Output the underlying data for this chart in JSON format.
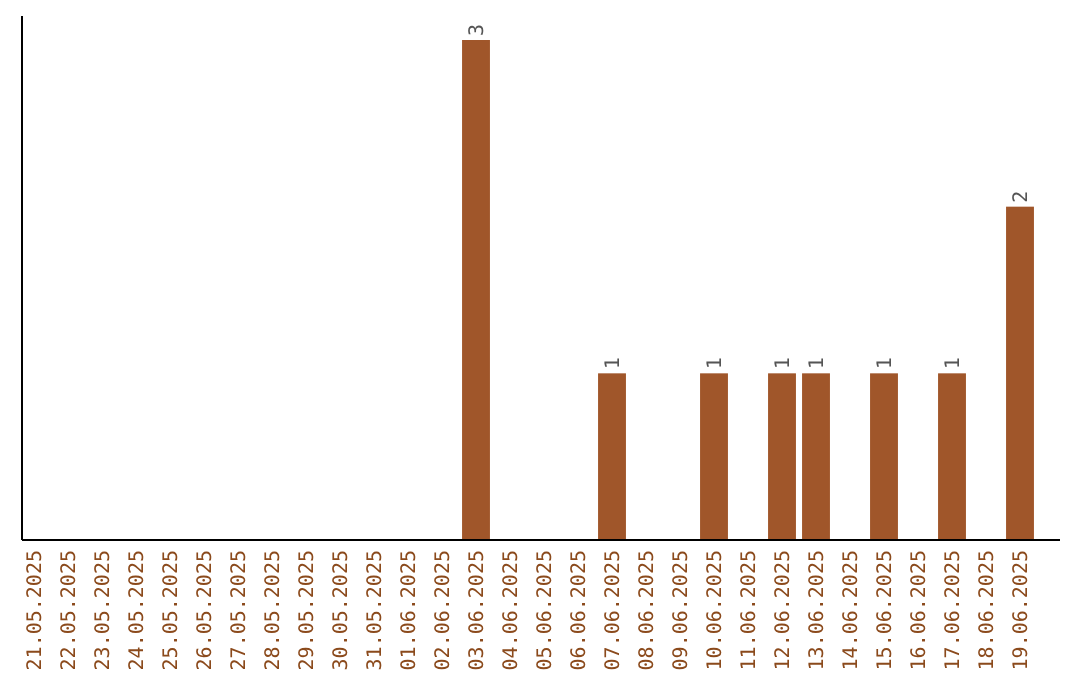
{
  "chart_data": {
    "type": "bar",
    "categories": [
      "21.05.2025",
      "22.05.2025",
      "23.05.2025",
      "24.05.2025",
      "25.05.2025",
      "26.05.2025",
      "27.05.2025",
      "28.05.2025",
      "29.05.2025",
      "30.05.2025",
      "31.05.2025",
      "01.06.2025",
      "02.06.2025",
      "03.06.2025",
      "04.06.2025",
      "05.06.2025",
      "06.06.2025",
      "07.06.2025",
      "08.06.2025",
      "09.06.2025",
      "10.06.2025",
      "11.06.2025",
      "12.06.2025",
      "13.06.2025",
      "14.06.2025",
      "15.06.2025",
      "16.06.2025",
      "17.06.2025",
      "18.06.2025",
      "19.06.2025"
    ],
    "values": [
      null,
      null,
      null,
      null,
      null,
      null,
      null,
      null,
      null,
      null,
      null,
      null,
      null,
      3,
      null,
      null,
      null,
      1,
      null,
      null,
      1,
      null,
      1,
      1,
      null,
      1,
      null,
      1,
      null,
      2
    ],
    "data_labels": true,
    "color": "#a0562a",
    "ylim": [
      0,
      3
    ],
    "tick_labels": "x"
  }
}
